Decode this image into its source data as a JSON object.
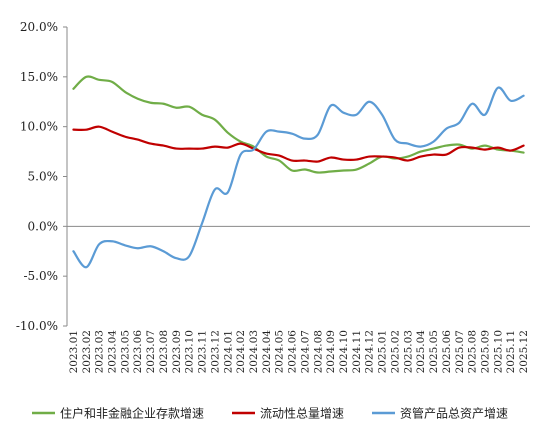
{
  "chart_data": {
    "type": "line",
    "title": "",
    "xlabel": "",
    "ylabel": "",
    "ylim": [
      -0.1,
      0.2
    ],
    "y_ticks": [
      -0.1,
      -0.05,
      0.0,
      0.05,
      0.1,
      0.15,
      0.2
    ],
    "y_tick_labels": [
      "-10.0%",
      "-5.0%",
      "0.0%",
      "5.0%",
      "10.0%",
      "15.0%",
      "20.0%"
    ],
    "grid": false,
    "legend_position": "bottom",
    "categories": [
      "2023.01",
      "2023.02",
      "2023.03",
      "2023.04",
      "2023.05",
      "2023.06",
      "2023.07",
      "2023.08",
      "2023.09",
      "2023.10",
      "2023.11",
      "2023.12",
      "2024.01",
      "2024.02",
      "2024.03",
      "2024.04",
      "2024.05",
      "2024.06",
      "2024.07",
      "2024.08",
      "2024.09",
      "2024.10",
      "2024.11",
      "2024.12",
      "2025.01",
      "2025.02",
      "2025.03",
      "2025.04",
      "2025.05",
      "2025.06",
      "2025.07",
      "2025.08",
      "2025.09",
      "2025.10",
      "2025.11",
      "2025.12"
    ],
    "series": [
      {
        "name": "住户和非金融企业存款增速",
        "color": "#70ad47",
        "values": [
          0.138,
          0.15,
          0.147,
          0.145,
          0.135,
          0.128,
          0.124,
          0.123,
          0.119,
          0.12,
          0.112,
          0.107,
          0.094,
          0.085,
          0.08,
          0.07,
          0.066,
          0.056,
          0.057,
          0.054,
          0.055,
          0.056,
          0.057,
          0.063,
          0.07,
          0.068,
          0.07,
          0.075,
          0.078,
          0.081,
          0.082,
          0.078,
          0.081,
          0.077,
          0.076,
          0.074
        ]
      },
      {
        "name": "流动性总量增速",
        "color": "#c00000",
        "values": [
          0.097,
          0.097,
          0.1,
          0.095,
          0.09,
          0.087,
          0.083,
          0.081,
          0.078,
          0.078,
          0.078,
          0.08,
          0.079,
          0.083,
          0.078,
          0.073,
          0.071,
          0.066,
          0.066,
          0.065,
          0.069,
          0.067,
          0.067,
          0.07,
          0.07,
          0.069,
          0.066,
          0.07,
          0.072,
          0.072,
          0.079,
          0.079,
          0.077,
          0.079,
          0.076,
          0.081
        ]
      },
      {
        "name": "资管产品总资产增速",
        "color": "#5b9bd5",
        "values": [
          -0.025,
          -0.041,
          -0.018,
          -0.015,
          -0.019,
          -0.022,
          -0.02,
          -0.025,
          -0.032,
          -0.03,
          0.003,
          0.037,
          0.034,
          0.072,
          0.077,
          0.095,
          0.095,
          0.093,
          0.088,
          0.092,
          0.121,
          0.114,
          0.112,
          0.125,
          0.112,
          0.087,
          0.083,
          0.08,
          0.085,
          0.098,
          0.104,
          0.123,
          0.112,
          0.139,
          0.126,
          0.131
        ]
      }
    ]
  }
}
